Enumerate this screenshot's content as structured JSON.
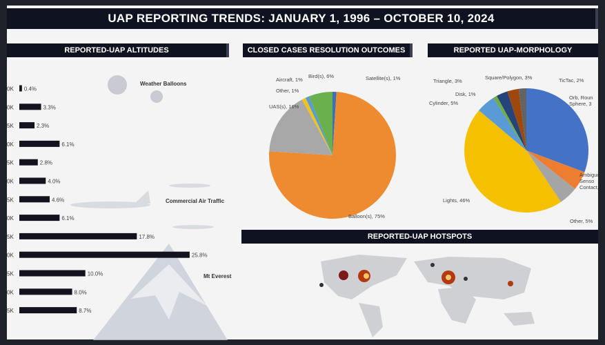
{
  "title": "UAP REPORTING TRENDS: JANUARY 1, 1996 – OCTOBER 10, 2024",
  "chart_data": [
    {
      "type": "bar",
      "orientation": "horizontal",
      "title": "REPORTED-UAP ALTITUDES",
      "categories": [
        "0K",
        "0K",
        "5K",
        "0K",
        "5K",
        "0K",
        "5K",
        "0K",
        "5K",
        "0K",
        "5K",
        "0K",
        "5K"
      ],
      "values": [
        0.4,
        3.3,
        2.3,
        6.1,
        2.8,
        4.0,
        4.6,
        6.1,
        17.8,
        25.8,
        10.0,
        8.0,
        8.7
      ],
      "data_labels": [
        "0.4%",
        "3.3%",
        "2.3%",
        "6.1%",
        "2.8%",
        "4.0%",
        "4.6%",
        "6.1%",
        "17.8%",
        "25.8%",
        "10.0%",
        "8.0%",
        "8.7%"
      ],
      "annotations": [
        "Weather Balloons",
        "Commercial Air Traffic",
        "Mt Everest"
      ],
      "bar_color": "#12131f"
    },
    {
      "type": "pie",
      "title": "CLOSED CASES RESOLUTION OUTCOMES",
      "slices": [
        {
          "label": "Satellite(s), 1%",
          "value": 1,
          "color": "#3f6fb5"
        },
        {
          "label": "Balloon(s), 75%",
          "value": 75,
          "color": "#ee8a30"
        },
        {
          "label": "UAS(s), 16%",
          "value": 16,
          "color": "#a8a8a8"
        },
        {
          "label": "Other, 1%",
          "value": 1,
          "color": "#f2c21a"
        },
        {
          "label": "Aircraft, 1%",
          "value": 1,
          "color": "#5a9bd5"
        },
        {
          "label": "Bird(s), 6%",
          "value": 6,
          "color": "#6ab04c"
        }
      ]
    },
    {
      "type": "pie",
      "title": "REPORTED UAP-MORPHOLOGY",
      "slices": [
        {
          "label": "Orb, Roun|Sphere, 3",
          "value": 31,
          "color": "#4472c4"
        },
        {
          "label": "Ambiguc|Senso|Contact,",
          "value": 5,
          "color": "#ed7d31"
        },
        {
          "label": "Other, 5%",
          "value": 5,
          "color": "#a5a5a5"
        },
        {
          "label": "Lights, 46%",
          "value": 46,
          "color": "#f5c000"
        },
        {
          "label": "Cylinder, 5%",
          "value": 5,
          "color": "#5b9bd5"
        },
        {
          "label": "Disk, 1%",
          "value": 1,
          "color": "#70ad47"
        },
        {
          "label": "Triangle, 3%",
          "value": 3,
          "color": "#264478"
        },
        {
          "label": "Square/Polygon, 3%",
          "value": 3,
          "color": "#9e480e"
        },
        {
          "label": "TicTac, 2%",
          "value": 2,
          "color": "#636363"
        }
      ]
    }
  ],
  "hotspots": {
    "title": "REPORTED-UAP HOTSPOTS"
  }
}
